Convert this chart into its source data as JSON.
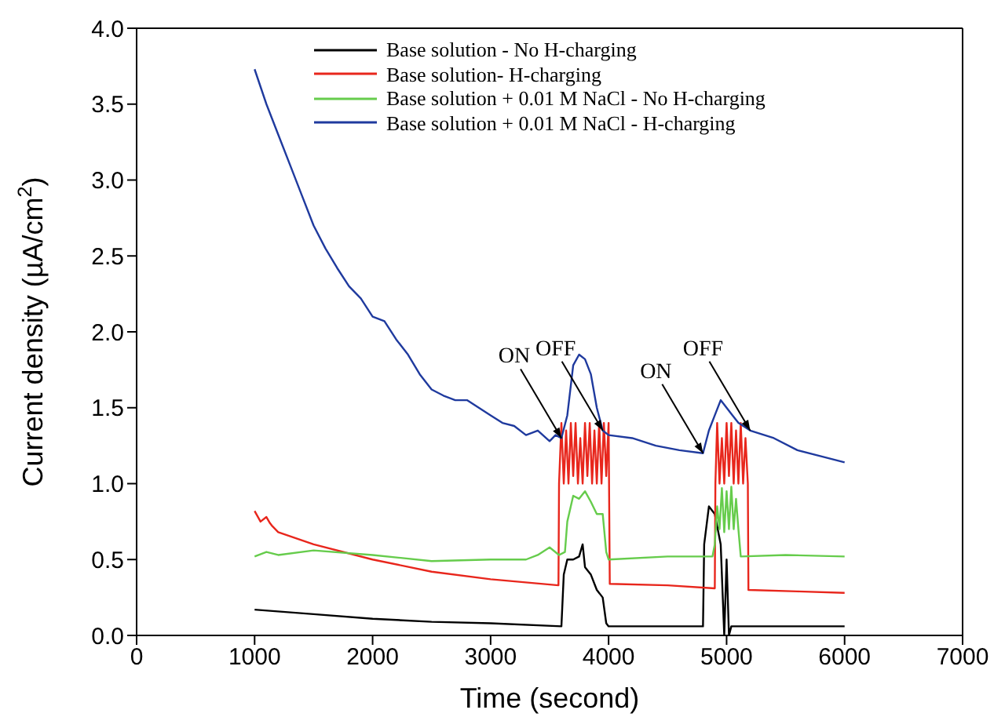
{
  "chart_data": {
    "type": "line",
    "xlabel": "Time (second)",
    "ylabel": "Current density (µA/cm$^{2}$)",
    "xlim": [
      0,
      7000
    ],
    "xticks": [
      0,
      1000,
      2000,
      3000,
      4000,
      5000,
      6000,
      7000
    ],
    "ylim": [
      0,
      4
    ],
    "yticks": [
      {
        "value": 0,
        "label": "0.0"
      },
      {
        "value": 0.5,
        "label": "0.5"
      },
      {
        "value": 1,
        "label": "1.0"
      },
      {
        "value": 1.5,
        "label": "1.5"
      },
      {
        "value": 2,
        "label": "2.0"
      },
      {
        "value": 2.5,
        "label": "2.5"
      },
      {
        "value": 3,
        "label": "3.0"
      },
      {
        "value": 3.5,
        "label": "3.5"
      },
      {
        "value": 4,
        "label": "4.0"
      }
    ],
    "grid": false,
    "legend": "top",
    "marker": "none",
    "line_style": "solid",
    "series": [
      {
        "name": "Base solution - No H-charging",
        "color": "#000000",
        "x": [
          1000,
          1500,
          2000,
          2500,
          3000,
          3600,
          3620,
          3650,
          3700,
          3750,
          3780,
          3800,
          3850,
          3900,
          3950,
          3980,
          4000,
          4500,
          4800,
          4810,
          4850,
          4900,
          4950,
          4980,
          5000,
          5020,
          5040,
          5500,
          6000
        ],
        "values": [
          0.17,
          0.14,
          0.11,
          0.09,
          0.08,
          0.06,
          0.4,
          0.5,
          0.5,
          0.52,
          0.6,
          0.45,
          0.4,
          0.3,
          0.25,
          0.08,
          0.06,
          0.06,
          0.06,
          0.6,
          0.85,
          0.8,
          0.6,
          0,
          0.5,
          0,
          0.06,
          0.06,
          0.06
        ]
      },
      {
        "name": "Base solution- H-charging",
        "color": "#e8261c",
        "x": [
          1000,
          1050,
          1100,
          1130,
          1150,
          1200,
          1500,
          2000,
          2500,
          3000,
          3575,
          3580,
          3600,
          3620,
          3640,
          3660,
          3680,
          3700,
          3720,
          3740,
          3760,
          3780,
          3800,
          3820,
          3840,
          3860,
          3880,
          3900,
          3920,
          3940,
          3960,
          3980,
          4000,
          4010,
          4500,
          4900,
          4905,
          4920,
          4940,
          4960,
          4980,
          5000,
          5020,
          5040,
          5060,
          5080,
          5100,
          5120,
          5140,
          5160,
          5180,
          5185,
          5600,
          6000
        ],
        "values": [
          0.82,
          0.75,
          0.78,
          0.74,
          0.72,
          0.68,
          0.6,
          0.5,
          0.42,
          0.37,
          0.33,
          1.0,
          1.4,
          1.0,
          1.35,
          1.0,
          1.4,
          1.05,
          1.4,
          1.0,
          1.3,
          1.0,
          1.4,
          1.05,
          1.4,
          1.0,
          1.35,
          1.0,
          1.4,
          1.0,
          1.4,
          1.05,
          1.4,
          0.34,
          0.33,
          0.31,
          1.0,
          1.4,
          1.0,
          1.3,
          1.0,
          1.4,
          1.05,
          1.4,
          1.0,
          1.35,
          1.0,
          1.4,
          1.0,
          1.3,
          1.0,
          0.3,
          0.29,
          0.28
        ]
      },
      {
        "name": "Base solution + 0.01 M NaCl - No H-charging",
        "color": "#66cc4c",
        "x": [
          1000,
          1100,
          1200,
          1500,
          2000,
          2500,
          3000,
          3300,
          3400,
          3500,
          3580,
          3630,
          3650,
          3700,
          3750,
          3800,
          3850,
          3900,
          3950,
          3980,
          4000,
          4500,
          4880,
          4900,
          4920,
          4940,
          4960,
          4980,
          5000,
          5020,
          5040,
          5060,
          5080,
          5100,
          5120,
          5500,
          6000
        ],
        "values": [
          0.52,
          0.55,
          0.53,
          0.56,
          0.53,
          0.49,
          0.5,
          0.5,
          0.53,
          0.58,
          0.53,
          0.55,
          0.75,
          0.92,
          0.9,
          0.95,
          0.88,
          0.8,
          0.8,
          0.55,
          0.5,
          0.52,
          0.52,
          0.6,
          0.85,
          0.7,
          0.97,
          0.68,
          0.95,
          0.7,
          0.98,
          0.7,
          0.9,
          0.7,
          0.52,
          0.53,
          0.52
        ]
      },
      {
        "name": "Base solution + 0.01 M NaCl - H-charging",
        "color": "#1f3a9e",
        "x": [
          1000,
          1100,
          1200,
          1300,
          1400,
          1500,
          1600,
          1700,
          1800,
          1900,
          2000,
          2100,
          2200,
          2300,
          2400,
          2500,
          2600,
          2700,
          2800,
          2900,
          3000,
          3100,
          3200,
          3300,
          3400,
          3500,
          3550,
          3600,
          3650,
          3700,
          3750,
          3800,
          3850,
          3900,
          3950,
          4000,
          4200,
          4400,
          4600,
          4800,
          4850,
          4900,
          4950,
          5000,
          5050,
          5100,
          5200,
          5400,
          5600,
          5800,
          6000
        ],
        "values": [
          3.73,
          3.5,
          3.3,
          3.1,
          2.9,
          2.7,
          2.55,
          2.42,
          2.3,
          2.22,
          2.1,
          2.07,
          1.95,
          1.85,
          1.72,
          1.62,
          1.58,
          1.55,
          1.55,
          1.5,
          1.45,
          1.4,
          1.38,
          1.32,
          1.35,
          1.28,
          1.32,
          1.3,
          1.45,
          1.78,
          1.85,
          1.82,
          1.72,
          1.5,
          1.35,
          1.32,
          1.3,
          1.25,
          1.22,
          1.2,
          1.35,
          1.45,
          1.55,
          1.5,
          1.45,
          1.4,
          1.35,
          1.3,
          1.22,
          1.18,
          1.14
        ]
      }
    ],
    "annotations": [
      {
        "text": "ON",
        "x": 3600,
        "y": 1.3
      },
      {
        "text": "OFF",
        "x": 3950,
        "y": 1.35
      },
      {
        "text": "ON",
        "x": 4800,
        "y": 1.2
      },
      {
        "text": "OFF",
        "x": 5200,
        "y": 1.35
      }
    ]
  }
}
